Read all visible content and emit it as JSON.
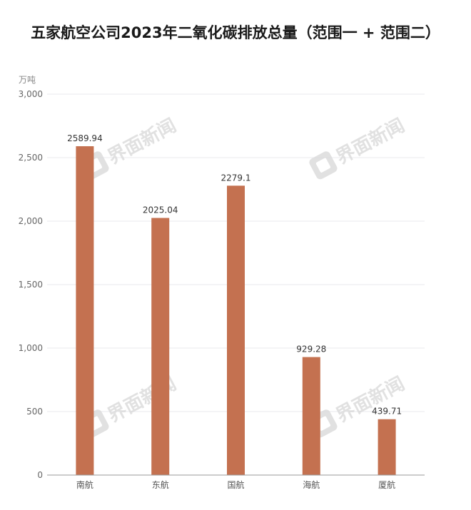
{
  "chart_data": {
    "type": "bar",
    "title": "五家航空公司2023年二氧化碳排放总量（范围一 + 范围二）",
    "ylabel": "万吨",
    "xlabel": "",
    "categories": [
      "南航",
      "东航",
      "国航",
      "海航",
      "厦航"
    ],
    "values": [
      2589.94,
      2025.04,
      2279.1,
      929.28,
      439.71
    ],
    "value_labels": [
      "2589.94",
      "2025.04",
      "2279.1",
      "929.28",
      "439.71"
    ],
    "ylim": [
      0,
      3000
    ],
    "yticks": [
      0,
      500,
      1000,
      1500,
      2000,
      2500,
      3000
    ],
    "ytick_labels": [
      "0",
      "500",
      "1,000",
      "1,500",
      "2,000",
      "2,500",
      "3,000"
    ],
    "grid": true,
    "bar_color": "#c47150"
  },
  "watermark": {
    "text": "界面新闻",
    "color": "#dcdcdc"
  }
}
